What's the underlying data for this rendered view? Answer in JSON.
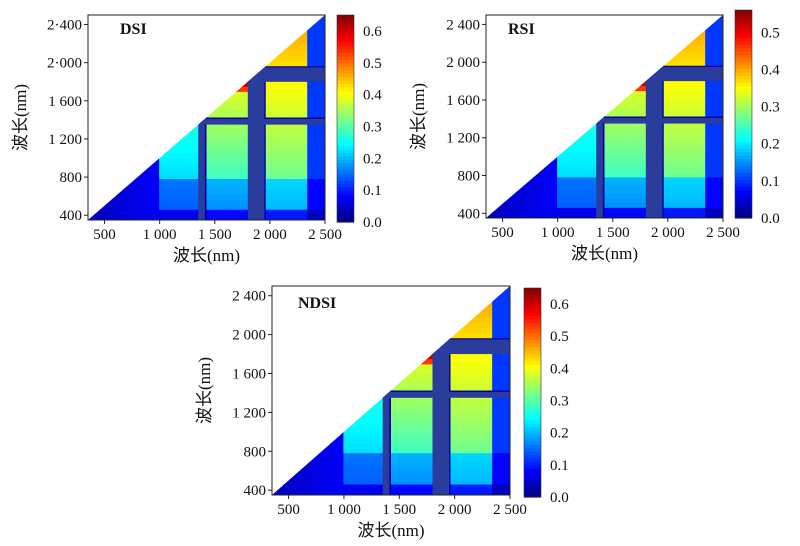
{
  "chart_data": [
    {
      "type": "heatmap",
      "title": "DSI",
      "xlabel": "波长(nm)",
      "ylabel": "波长(nm)",
      "xlim": [
        350,
        2500
      ],
      "ylim": [
        350,
        2500
      ],
      "x_ticks": [
        {
          "value": 500,
          "label": "500"
        },
        {
          "value": 1000,
          "label": "1 000"
        },
        {
          "value": 1500,
          "label": "1 500"
        },
        {
          "value": 2000,
          "label": "2 000"
        },
        {
          "value": 2500,
          "label": "2 500"
        }
      ],
      "y_ticks": [
        {
          "value": 400,
          "label": "400"
        },
        {
          "value": 800,
          "label": "800"
        },
        {
          "value": 1200,
          "label": "1 200"
        },
        {
          "value": 1600,
          "label": "1 600"
        },
        {
          "value": 2000,
          "label": "2·000"
        },
        {
          "value": 2400,
          "label": "2·400"
        }
      ],
      "colorbar": {
        "range": [
          0,
          0.65
        ],
        "ticks": [
          {
            "value": 0.0,
            "label": "0.0"
          },
          {
            "value": 0.1,
            "label": "0.1"
          },
          {
            "value": 0.2,
            "label": "0.2"
          },
          {
            "value": 0.3,
            "label": "0.3"
          },
          {
            "value": 0.4,
            "label": "0.4"
          },
          {
            "value": 0.5,
            "label": "0.5"
          },
          {
            "value": 0.6,
            "label": "0.6"
          }
        ]
      },
      "water_absorption_bands_nm": [
        [
          1350,
          1410
        ],
        [
          1800,
          1950
        ]
      ],
      "approx_max_value": 0.62
    },
    {
      "type": "heatmap",
      "title": "RSI",
      "xlabel": "波长(nm)",
      "ylabel": "波长(nm)",
      "xlim": [
        350,
        2500
      ],
      "ylim": [
        350,
        2500
      ],
      "x_ticks": [
        {
          "value": 500,
          "label": "500"
        },
        {
          "value": 1000,
          "label": "1 000"
        },
        {
          "value": 1500,
          "label": "1 500"
        },
        {
          "value": 2000,
          "label": "2 000"
        },
        {
          "value": 2500,
          "label": "2 500"
        }
      ],
      "y_ticks": [
        {
          "value": 400,
          "label": "400"
        },
        {
          "value": 800,
          "label": "800"
        },
        {
          "value": 1200,
          "label": "1 200"
        },
        {
          "value": 1600,
          "label": "1 600"
        },
        {
          "value": 2000,
          "label": "2 000"
        },
        {
          "value": 2400,
          "label": "2 400"
        }
      ],
      "colorbar": {
        "range": [
          0,
          0.56
        ],
        "ticks": [
          {
            "value": 0.0,
            "label": "0.0"
          },
          {
            "value": 0.1,
            "label": "0.1"
          },
          {
            "value": 0.2,
            "label": "0.2"
          },
          {
            "value": 0.3,
            "label": "0.3"
          },
          {
            "value": 0.4,
            "label": "0.4"
          },
          {
            "value": 0.5,
            "label": "0.5"
          }
        ]
      },
      "water_absorption_bands_nm": [
        [
          1350,
          1410
        ],
        [
          1800,
          1950
        ]
      ],
      "approx_max_value": 0.55
    },
    {
      "type": "heatmap",
      "title": "NDSI",
      "xlabel": "波长(nm)",
      "ylabel": "波长(nm)",
      "xlim": [
        350,
        2500
      ],
      "ylim": [
        350,
        2500
      ],
      "x_ticks": [
        {
          "value": 500,
          "label": "500"
        },
        {
          "value": 1000,
          "label": "1 000"
        },
        {
          "value": 1500,
          "label": "1 500"
        },
        {
          "value": 2000,
          "label": "2 000"
        },
        {
          "value": 2500,
          "label": "2 500"
        }
      ],
      "y_ticks": [
        {
          "value": 400,
          "label": "400"
        },
        {
          "value": 800,
          "label": "800"
        },
        {
          "value": 1200,
          "label": "1 200"
        },
        {
          "value": 1600,
          "label": "1 600"
        },
        {
          "value": 2000,
          "label": "2 000"
        },
        {
          "value": 2400,
          "label": "2 400"
        }
      ],
      "colorbar": {
        "range": [
          0,
          0.65
        ],
        "ticks": [
          {
            "value": 0.0,
            "label": "0.0"
          },
          {
            "value": 0.1,
            "label": "0.1"
          },
          {
            "value": 0.2,
            "label": "0.2"
          },
          {
            "value": 0.3,
            "label": "0.3"
          },
          {
            "value": 0.4,
            "label": "0.4"
          },
          {
            "value": 0.5,
            "label": "0.5"
          },
          {
            "value": 0.6,
            "label": "0.6"
          }
        ]
      },
      "water_absorption_bands_nm": [
        [
          1350,
          1410
        ],
        [
          1800,
          1950
        ]
      ],
      "approx_max_value": 0.62
    }
  ]
}
